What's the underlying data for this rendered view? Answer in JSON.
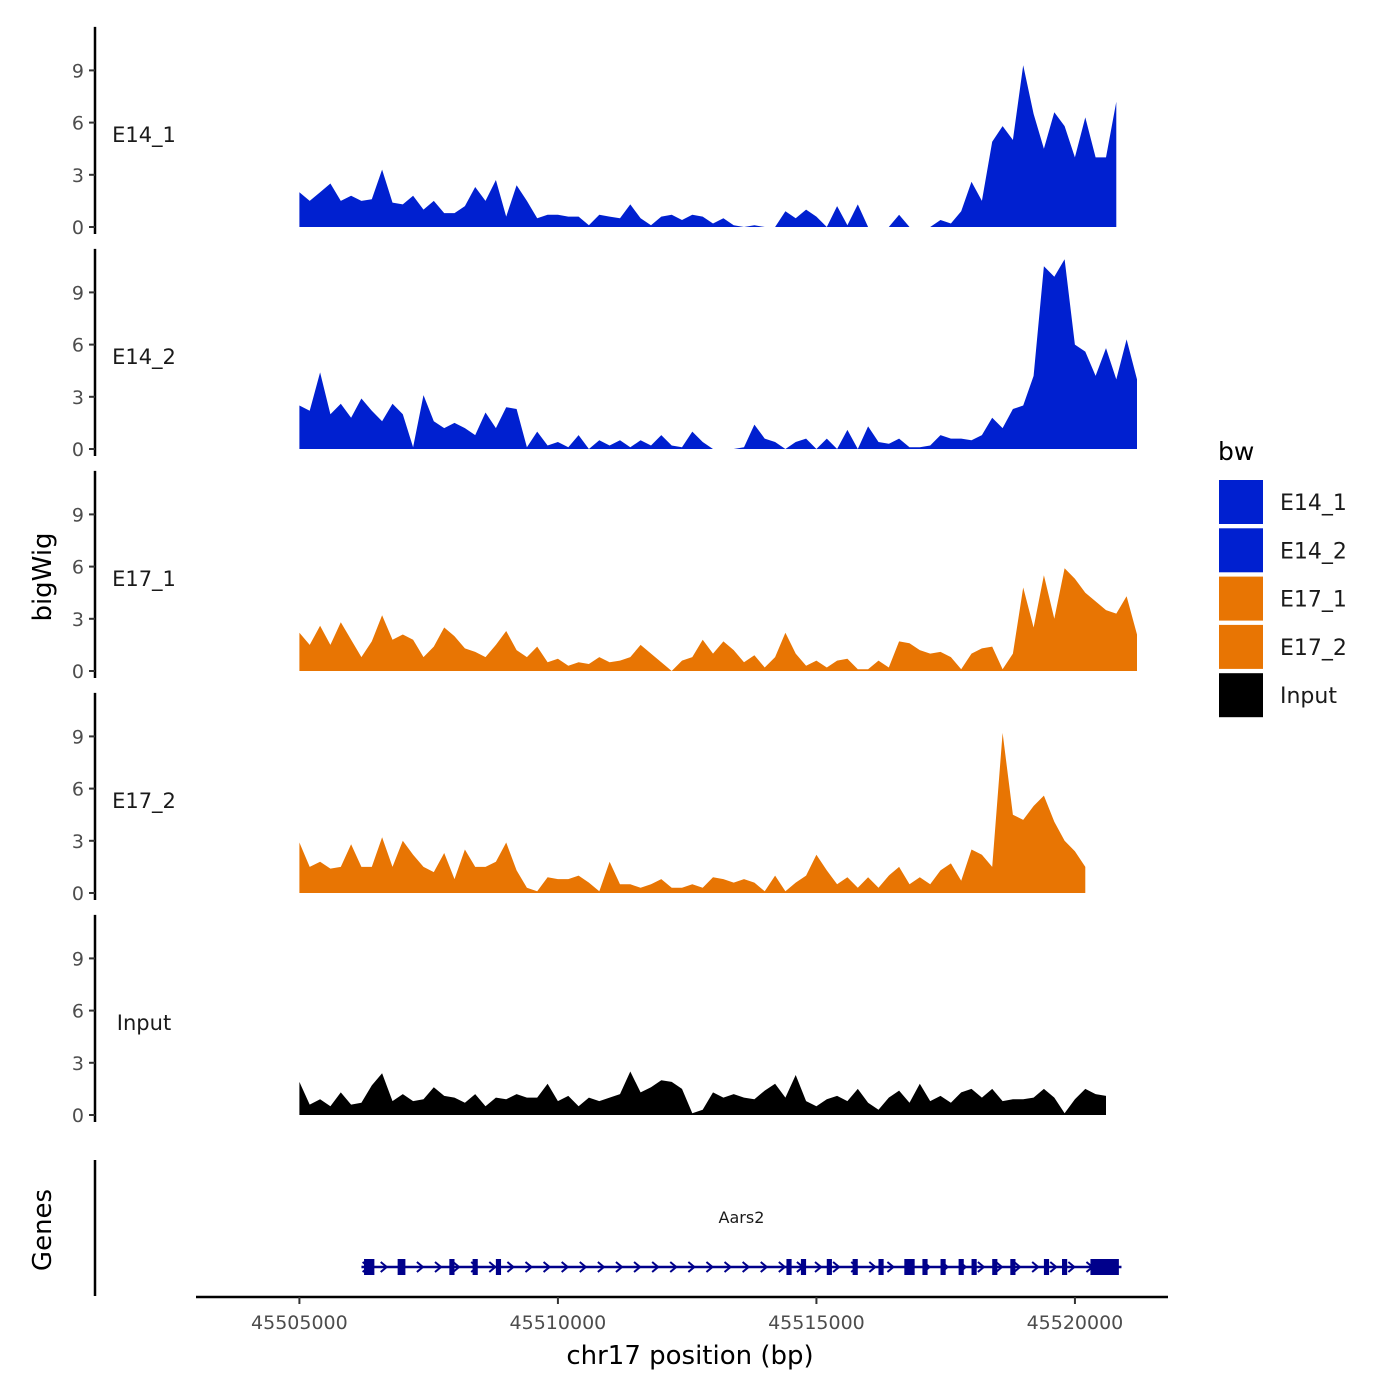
{
  "chart_data": {
    "type": "area",
    "y_axis_title": "bigWig",
    "x_axis_title": "chr17 position (bp)",
    "xlim": [
      45503000,
      45521800
    ],
    "ylim": [
      0,
      11.5
    ],
    "y_ticks": [
      0,
      3,
      6,
      9
    ],
    "y_tick_labels": [
      "0",
      "3",
      "6",
      "9"
    ],
    "x_ticks": [
      45505000,
      45510000,
      45515000,
      45520000
    ],
    "x_tick_labels": [
      "45505000",
      "45510000",
      "45515000",
      "45520000"
    ],
    "x_start": 45505000,
    "x_step": 200,
    "legend": {
      "title": "bw",
      "entries": [
        {
          "label": "E14_1",
          "color": "#0020D0"
        },
        {
          "label": "E14_2",
          "color": "#0020D0"
        },
        {
          "label": "E17_1",
          "color": "#E87503"
        },
        {
          "label": "E17_2",
          "color": "#E87503"
        },
        {
          "label": "Input",
          "color": "#000000"
        }
      ]
    },
    "series": [
      {
        "name": "E14_1",
        "color": "#0020D0",
        "values": [
          2.0,
          1.5,
          2.0,
          2.5,
          1.5,
          1.8,
          1.5,
          1.6,
          3.3,
          1.4,
          1.3,
          1.8,
          1.0,
          1.5,
          0.8,
          0.8,
          1.2,
          2.3,
          1.5,
          2.7,
          0.6,
          2.4,
          1.5,
          0.5,
          0.7,
          0.7,
          0.6,
          0.6,
          0.1,
          0.7,
          0.6,
          0.5,
          1.3,
          0.5,
          0.1,
          0.6,
          0.7,
          0.4,
          0.7,
          0.6,
          0.2,
          0.5,
          0.1,
          0,
          0.1,
          0,
          0,
          0.9,
          0.5,
          1.0,
          0.6,
          0,
          1.2,
          0.1,
          1.3,
          0,
          0,
          0,
          0.7,
          0,
          0,
          0,
          0.4,
          0.2,
          0.9,
          2.6,
          1.5,
          4.9,
          5.8,
          5.0,
          9.3,
          6.5,
          4.5,
          6.6,
          5.8,
          4.0,
          6.3,
          4.0,
          4.0,
          7.2
        ]
      },
      {
        "name": "E14_2",
        "color": "#0020D0",
        "values": [
          2.5,
          2.2,
          4.4,
          2.0,
          2.6,
          1.8,
          2.9,
          2.2,
          1.6,
          2.6,
          2.0,
          0.1,
          3.1,
          1.6,
          1.2,
          1.5,
          1.2,
          0.8,
          2.1,
          1.2,
          2.4,
          2.3,
          0.1,
          1.0,
          0.2,
          0.4,
          0.1,
          0.8,
          0,
          0.5,
          0.2,
          0.5,
          0.1,
          0.5,
          0.2,
          0.8,
          0.2,
          0.1,
          1.0,
          0.4,
          0,
          0,
          0,
          0.1,
          1.4,
          0.6,
          0.4,
          0,
          0.4,
          0.6,
          0,
          0.6,
          0,
          1.1,
          0,
          1.3,
          0.4,
          0.3,
          0.6,
          0.1,
          0.1,
          0.2,
          0.8,
          0.6,
          0.6,
          0.5,
          0.8,
          1.8,
          1.2,
          2.3,
          2.5,
          4.2,
          10.5,
          9.9,
          10.9,
          6.0,
          5.6,
          4.2,
          5.8,
          4.0,
          6.3,
          4.0
        ]
      },
      {
        "name": "E17_1",
        "color": "#E87503",
        "values": [
          2.2,
          1.5,
          2.6,
          1.5,
          2.8,
          1.8,
          0.8,
          1.7,
          3.2,
          1.8,
          2.1,
          1.8,
          0.8,
          1.4,
          2.5,
          2.0,
          1.3,
          1.1,
          0.8,
          1.5,
          2.3,
          1.2,
          0.8,
          1.4,
          0.5,
          0.7,
          0.3,
          0.5,
          0.4,
          0.8,
          0.5,
          0.6,
          0.8,
          1.5,
          1.0,
          0.5,
          0,
          0.6,
          0.8,
          1.8,
          1.0,
          1.7,
          1.2,
          0.5,
          0.9,
          0.2,
          0.8,
          2.2,
          1.0,
          0.3,
          0.6,
          0.2,
          0.6,
          0.7,
          0.1,
          0.1,
          0.6,
          0.2,
          1.7,
          1.6,
          1.2,
          1.0,
          1.1,
          0.8,
          0.1,
          1.0,
          1.3,
          1.4,
          0.1,
          1.0,
          4.8,
          2.5,
          5.5,
          3.0,
          5.9,
          5.3,
          4.5,
          4.0,
          3.5,
          3.3,
          4.3,
          2.1
        ]
      },
      {
        "name": "E17_2",
        "color": "#E87503",
        "values": [
          2.9,
          1.5,
          1.8,
          1.4,
          1.5,
          2.8,
          1.5,
          1.5,
          3.2,
          1.5,
          3.0,
          2.2,
          1.5,
          1.2,
          2.3,
          0.8,
          2.5,
          1.5,
          1.5,
          1.8,
          2.9,
          1.3,
          0.3,
          0.1,
          0.9,
          0.8,
          0.8,
          1.0,
          0.6,
          0.1,
          1.8,
          0.5,
          0.5,
          0.3,
          0.5,
          0.8,
          0.3,
          0.3,
          0.5,
          0.3,
          0.9,
          0.8,
          0.6,
          0.8,
          0.6,
          0.1,
          1.0,
          0.1,
          0.6,
          1.0,
          2.2,
          1.3,
          0.5,
          0.9,
          0.3,
          0.9,
          0.3,
          1.0,
          1.5,
          0.5,
          0.9,
          0.5,
          1.3,
          1.7,
          0.7,
          2.5,
          2.2,
          1.5,
          9.2,
          4.5,
          4.2,
          5.0,
          5.6,
          4.1,
          3.0,
          2.4,
          1.5
        ]
      },
      {
        "name": "Input",
        "color": "#000000",
        "values": [
          1.9,
          0.6,
          0.9,
          0.5,
          1.3,
          0.6,
          0.7,
          1.7,
          2.4,
          0.8,
          1.2,
          0.8,
          0.9,
          1.6,
          1.1,
          1.0,
          0.7,
          1.2,
          0.5,
          1.0,
          0.9,
          1.2,
          1.0,
          1.0,
          1.8,
          0.8,
          1.1,
          0.5,
          1.0,
          0.8,
          1.0,
          1.2,
          2.5,
          1.3,
          1.6,
          2.0,
          1.9,
          1.5,
          0.1,
          0.3,
          1.3,
          1.0,
          1.2,
          1.0,
          0.9,
          1.4,
          1.8,
          1.0,
          2.3,
          0.8,
          0.5,
          0.9,
          1.1,
          0.8,
          1.5,
          0.7,
          0.3,
          1.0,
          1.4,
          0.7,
          1.8,
          0.8,
          1.1,
          0.7,
          1.3,
          1.5,
          1.0,
          1.5,
          0.8,
          0.9,
          0.9,
          1.0,
          1.5,
          1.0,
          0.1,
          0.9,
          1.5,
          1.2,
          1.1
        ]
      }
    ],
    "genes_panel": {
      "y_label": "Genes",
      "gene_name": "Aars2",
      "gene_color": "#00008B",
      "strand": "+",
      "start": 45506200,
      "end": 45520900,
      "exons": [
        [
          45506250,
          45506450
        ],
        [
          45506900,
          45507050
        ],
        [
          45507900,
          45508000
        ],
        [
          45508350,
          45508450
        ],
        [
          45508800,
          45508900
        ],
        [
          45514420,
          45514520
        ],
        [
          45514700,
          45514800
        ],
        [
          45515200,
          45515300
        ],
        [
          45515700,
          45515800
        ],
        [
          45516200,
          45516300
        ],
        [
          45516700,
          45516900
        ],
        [
          45517050,
          45517150
        ],
        [
          45517400,
          45517500
        ],
        [
          45517750,
          45517850
        ],
        [
          45518000,
          45518100
        ],
        [
          45518400,
          45518500
        ],
        [
          45518750,
          45518850
        ],
        [
          45519400,
          45519500
        ],
        [
          45519750,
          45519850
        ],
        [
          45520300,
          45520850
        ]
      ]
    }
  }
}
